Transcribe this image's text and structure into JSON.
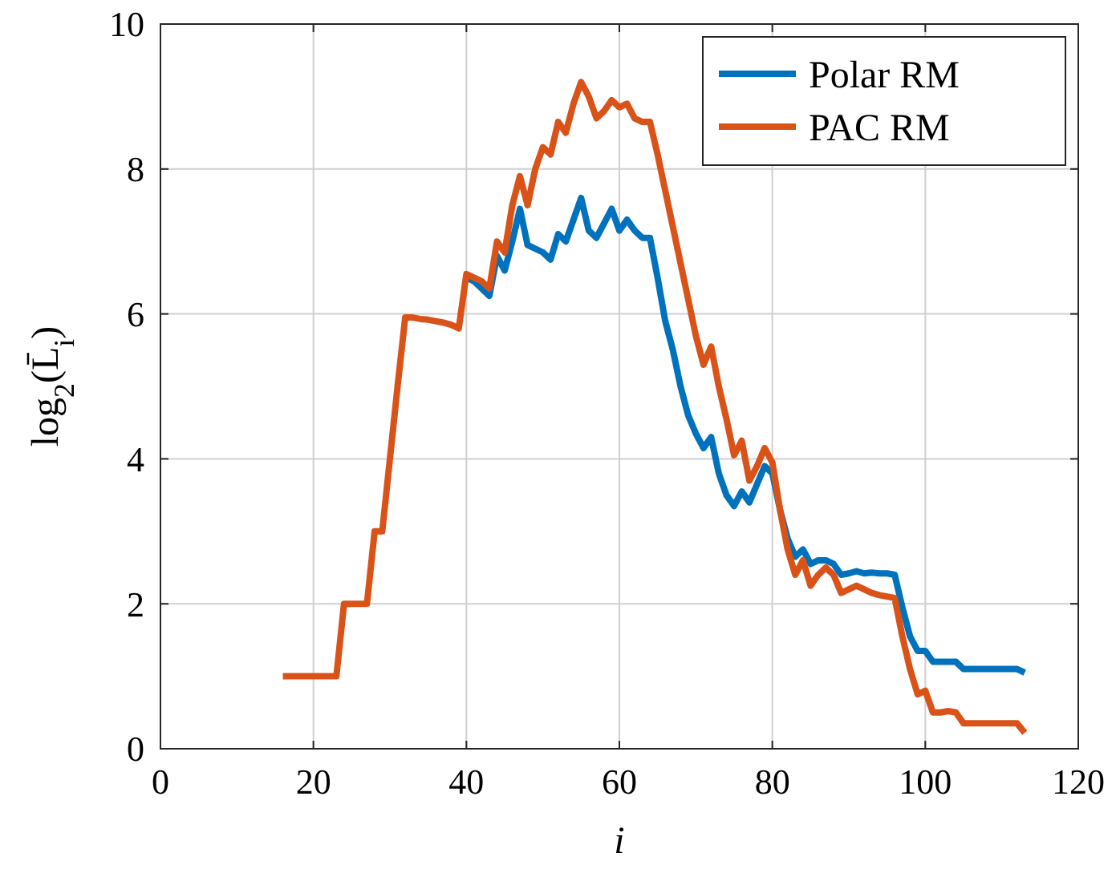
{
  "chart_data": {
    "type": "line",
    "xlabel": "i",
    "ylabel": "log$_{2}$(L̄$_{i}$)",
    "x": [
      16,
      17,
      18,
      19,
      20,
      21,
      22,
      23,
      24,
      25,
      26,
      27,
      28,
      29,
      30,
      31,
      32,
      33,
      34,
      35,
      36,
      37,
      38,
      39,
      40,
      41,
      42,
      43,
      44,
      45,
      46,
      47,
      48,
      49,
      50,
      51,
      52,
      53,
      54,
      55,
      56,
      57,
      58,
      59,
      60,
      61,
      62,
      63,
      64,
      65,
      66,
      67,
      68,
      69,
      70,
      71,
      72,
      73,
      74,
      75,
      76,
      77,
      78,
      79,
      80,
      81,
      82,
      83,
      84,
      85,
      86,
      87,
      88,
      89,
      90,
      91,
      92,
      93,
      94,
      95,
      96,
      97,
      98,
      99,
      100,
      101,
      102,
      103,
      104,
      105,
      106,
      107,
      108,
      109,
      110,
      111,
      112,
      113
    ],
    "series": [
      {
        "name": "Polar RM",
        "color": "#0072bd",
        "values": [
          null,
          null,
          null,
          null,
          null,
          null,
          null,
          null,
          null,
          null,
          null,
          null,
          null,
          null,
          null,
          null,
          null,
          null,
          null,
          null,
          null,
          null,
          null,
          null,
          6.5,
          6.45,
          6.35,
          6.25,
          6.8,
          6.6,
          7.0,
          7.45,
          6.95,
          6.9,
          6.85,
          6.75,
          7.1,
          7.0,
          7.3,
          7.6,
          7.15,
          7.05,
          7.25,
          7.45,
          7.15,
          7.3,
          7.15,
          7.05,
          7.05,
          6.5,
          5.9,
          5.5,
          5.0,
          4.6,
          4.35,
          4.15,
          4.3,
          3.8,
          3.5,
          3.35,
          3.55,
          3.4,
          3.65,
          3.9,
          3.8,
          3.3,
          2.9,
          2.65,
          2.75,
          2.55,
          2.6,
          2.6,
          2.55,
          2.4,
          2.42,
          2.45,
          2.42,
          2.43,
          2.42,
          2.42,
          2.4,
          1.95,
          1.55,
          1.35,
          1.35,
          1.2,
          1.2,
          1.2,
          1.2,
          1.1,
          1.1,
          1.1,
          1.1,
          1.1,
          1.1,
          1.1,
          1.1,
          1.05
        ]
      },
      {
        "name": "PAC RM",
        "color": "#d95319",
        "values": [
          1,
          1,
          1,
          1,
          1,
          1,
          1,
          1,
          2,
          2,
          2,
          2,
          3,
          3,
          4,
          5,
          5.95,
          5.95,
          5.93,
          5.92,
          5.9,
          5.88,
          5.85,
          5.8,
          6.55,
          6.5,
          6.45,
          6.35,
          7.0,
          6.85,
          7.5,
          7.9,
          7.5,
          8.0,
          8.3,
          8.2,
          8.65,
          8.5,
          8.9,
          9.2,
          9.0,
          8.7,
          8.8,
          8.95,
          8.85,
          8.9,
          8.7,
          8.65,
          8.65,
          8.2,
          7.7,
          7.2,
          6.7,
          6.2,
          5.7,
          5.3,
          5.55,
          5.0,
          4.55,
          4.05,
          4.25,
          3.7,
          3.9,
          4.15,
          3.95,
          3.3,
          2.75,
          2.4,
          2.6,
          2.25,
          2.4,
          2.5,
          2.4,
          2.15,
          2.2,
          2.25,
          2.2,
          2.15,
          2.12,
          2.1,
          2.08,
          1.55,
          1.1,
          0.75,
          0.8,
          0.5,
          0.5,
          0.52,
          0.5,
          0.35,
          0.35,
          0.35,
          0.35,
          0.35,
          0.35,
          0.35,
          0.35,
          0.22
        ]
      }
    ],
    "xlim": [
      0,
      120
    ],
    "xticks": [
      0,
      20,
      40,
      60,
      80,
      100,
      120
    ],
    "ylim": [
      0,
      10
    ],
    "yticks": [
      0,
      2,
      4,
      6,
      8,
      10
    ],
    "grid": true,
    "legend": "top right",
    "line_style": "solid"
  }
}
